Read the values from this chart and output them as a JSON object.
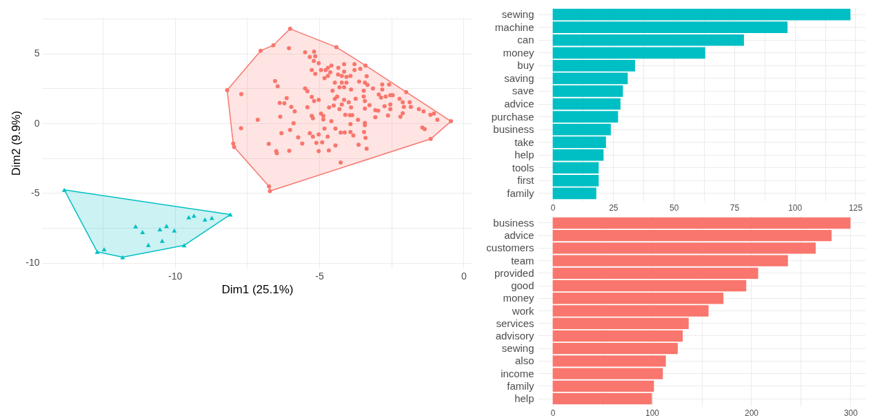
{
  "chart_data": [
    {
      "type": "scatter",
      "xlabel": "Dim1 (25.1%)",
      "ylabel": "Dim2 (9.9%)",
      "xlim": [
        -14.6,
        0.3
      ],
      "ylim": [
        -10.4,
        7.6
      ],
      "xticks": [
        {
          "value": -12.5,
          "label": null
        },
        -10,
        {
          "value": -7.5,
          "label": null
        },
        -5,
        {
          "value": -2.5,
          "label": null
        },
        0
      ],
      "yticks": [
        -10,
        {
          "value": -7.5,
          "label": null
        },
        -5,
        {
          "value": -2.5,
          "label": null
        },
        0,
        {
          "value": 2.5,
          "label": null
        },
        5,
        {
          "value": 7.5,
          "label": null
        }
      ],
      "grid": true,
      "series": [
        {
          "type": "scatter",
          "color": "#f8766d",
          "marker": "circle",
          "x": [
            -6.01,
            -4.41,
            -3.4,
            -1.99,
            -0.44,
            -1.14,
            -6.71,
            -6.74,
            -7.95,
            -7.98,
            -8.19,
            -7.03,
            -6.59,
            -6.05,
            -5.49,
            -5.33,
            -5.18,
            -5.14,
            -5.19,
            -5.02,
            -4.94,
            -5.26,
            -5.14,
            -4.78,
            -4.7,
            -4.58,
            -4.62,
            -4.7,
            -4.82,
            -4.34,
            -4.14,
            -4.14,
            -4.35,
            -4.22,
            -4.06,
            -3.92,
            -3.78,
            -3.78,
            -3.58,
            -3.36,
            -3.62,
            -3.42,
            -3.33,
            -3.14,
            -2.82,
            -2.82,
            -2.58,
            -4.46,
            -4.22,
            -4.06,
            -4.3,
            -4.14,
            -4.54,
            -3.9,
            -3.46,
            -3.46,
            -3.42,
            -2.94,
            -2.86,
            -2.7,
            -2.54,
            -2.46,
            -2.22,
            -2.11,
            -1.87,
            -2.07,
            -1.83,
            -1.55,
            -1.39,
            -1.15,
            -1.03,
            -0.91,
            -1.43,
            -1.35,
            -2.11,
            -2.19,
            -2.62,
            -2.96,
            -3.06,
            -3.06,
            -2.74,
            -2.54,
            -2.54,
            -3.26,
            -3.42,
            -3.74,
            -3.98,
            -3.9,
            -4.14,
            -4.22,
            -4.3,
            -4.38,
            -4.46,
            -4.66,
            -4.5,
            -4.1,
            -3.94,
            -3.86,
            -3.66,
            -3.42,
            -3.42,
            -3.92,
            -3.92,
            -4.26,
            -4.12,
            -4.44,
            -4.58,
            -4.82,
            -4.94,
            -4.86,
            -4.86,
            -5.02,
            -5.18,
            -5.26,
            -5.41,
            -5.26,
            -5.22,
            -5.49,
            -5.41,
            -5.33,
            -5.22,
            -5.02,
            -4.71,
            -5.1,
            -4.9,
            -5.02,
            -4.67,
            -4.44,
            -4.26,
            -3.82,
            -3.64,
            -3.36,
            -3.4,
            -3.45,
            -6.53,
            -6.44,
            -6.13,
            -6.37,
            -6.21,
            -5.97,
            -5.85,
            -6.35,
            -5.89,
            -6.01,
            -6.31,
            -5.73,
            -5.59,
            -6.75,
            -6.49,
            -6.47,
            -6.04,
            -7.13,
            -7.71,
            -7.7
          ],
          "values": [
            6.77,
            5.46,
            4.14,
            2.24,
            0.15,
            -1.12,
            -4.85,
            -4.52,
            -1.69,
            -1.45,
            2.37,
            5.2,
            5.59,
            5.38,
            5.08,
            4.75,
            5.13,
            4.8,
            4.47,
            4.31,
            3.82,
            3.82,
            3.54,
            3.82,
            3.98,
            4.14,
            3.65,
            3.4,
            3.24,
            3.98,
            4.23,
            3.7,
            3.49,
            3.4,
            3.32,
            3.4,
            4.23,
            3.82,
            3.9,
            3.37,
            2.99,
            2.91,
            2.75,
            2.5,
            2.78,
            2.42,
            2.78,
            2.91,
            2.91,
            2.91,
            2.58,
            2.58,
            2.34,
            2.42,
            2.34,
            1.92,
            1.6,
            2.06,
            1.84,
            1.92,
            2.01,
            2.01,
            1.76,
            1.51,
            1.51,
            1.18,
            1.18,
            1.02,
            0.86,
            0.61,
            0.69,
            0.25,
            -0.3,
            -0.41,
            0.72,
            0.48,
            0.56,
            0.91,
            0.94,
            0.44,
            1.22,
            1.35,
            1.02,
            1.3,
            1.05,
            1.76,
            1.51,
            1.14,
            1.68,
            1.35,
            1.02,
            1.92,
            1.76,
            1.14,
            1.27,
            0.61,
            0.58,
            0.58,
            0.25,
            0.03,
            -0.13,
            -0.05,
            -0.62,
            -0.66,
            -0.66,
            -0.38,
            0.15,
            -0.38,
            0.69,
            0.53,
            0.28,
            1.68,
            1.6,
            1.89,
            1.15,
            0.53,
            0.36,
            2.5,
            2.3,
            -0.71,
            -0.95,
            -0.79,
            -0.95,
            -1.4,
            -1.36,
            -1.99,
            -1.94,
            -1.58,
            -2.81,
            -0.87,
            -1.53,
            -1.82,
            -1.04,
            -0.62,
            3.03,
            2.66,
            1.81,
            1.46,
            1.43,
            1.18,
            0.86,
            0.48,
            0.0,
            -0.48,
            -0.71,
            -1.0,
            -1.45,
            -1.48,
            -1.99,
            -2.14,
            -1.97,
            0.25,
            -0.35,
            2.09
          ]
        },
        {
          "type": "scatter",
          "color": "#00bfc4",
          "marker": "triangle",
          "x": [
            -13.83,
            -8.08,
            -9.68,
            -11.81,
            -12.69,
            -12.45,
            -11.36,
            -11.12,
            -10.92,
            -10.52,
            -10.29,
            -10.02,
            -10.44,
            -9.52,
            -9.34,
            -8.96,
            -8.72
          ],
          "values": [
            -4.77,
            -6.53,
            -8.74,
            -9.59,
            -9.2,
            -9.02,
            -7.38,
            -7.79,
            -8.71,
            -7.59,
            -7.35,
            -7.67,
            -8.41,
            -6.72,
            -6.61,
            -6.89,
            -6.77
          ]
        },
        {
          "type": "area",
          "color": "#f8766d",
          "marker": "none",
          "x": [
            -6.01,
            -4.41,
            -3.4,
            -1.99,
            -0.44,
            -1.14,
            -6.71,
            -6.74,
            -7.95,
            -7.98,
            -8.19,
            -7.03,
            -6.59,
            -6.01
          ],
          "values": [
            6.77,
            5.46,
            4.14,
            2.24,
            0.15,
            -1.12,
            -4.85,
            -4.52,
            -1.69,
            -1.45,
            2.37,
            5.2,
            5.59,
            6.77
          ]
        },
        {
          "type": "area",
          "color": "#00bfc4",
          "marker": "none",
          "x": [
            -13.83,
            -8.08,
            -9.68,
            -11.81,
            -12.69,
            -13.83
          ],
          "values": [
            -4.77,
            -6.53,
            -8.74,
            -9.59,
            -9.2,
            -4.77
          ]
        }
      ]
    },
    {
      "type": "bar",
      "orientation": "horizontal",
      "color": "#00bfc4",
      "grid": true,
      "categories": [
        "sewing",
        "machine",
        "can",
        "money",
        "buy",
        "saving",
        "save",
        "advice",
        "purchase",
        "business",
        "take",
        "help",
        "tools",
        "first",
        "family"
      ],
      "values": [
        123,
        97,
        79,
        63,
        34,
        31,
        29,
        28,
        27,
        24,
        22,
        21,
        19,
        19,
        18
      ],
      "xlim": [
        -6.15,
        129.15
      ],
      "xticks": [
        0,
        {
          "value": 12.5,
          "label": null
        },
        25,
        {
          "value": 37.5,
          "label": null
        },
        50,
        {
          "value": 62.5,
          "label": null
        },
        75,
        {
          "value": 87.5,
          "label": null
        },
        100,
        {
          "value": 112.5,
          "label": null
        },
        125
      ]
    },
    {
      "type": "bar",
      "orientation": "horizontal",
      "color": "#f8766d",
      "grid": true,
      "categories": [
        "business",
        "advice",
        "customers",
        "team",
        "provided",
        "good",
        "money",
        "work",
        "services",
        "advisory",
        "sewing",
        "also",
        "income",
        "family",
        "help"
      ],
      "values": [
        300,
        281,
        265,
        237,
        207,
        195,
        172,
        157,
        137,
        131,
        126,
        114,
        111,
        102,
        100
      ],
      "xlim": [
        -15,
        315
      ],
      "xticks": [
        0,
        {
          "value": 50,
          "label": null
        },
        100,
        {
          "value": 150,
          "label": null
        },
        200,
        {
          "value": 250,
          "label": null
        },
        300
      ]
    }
  ]
}
